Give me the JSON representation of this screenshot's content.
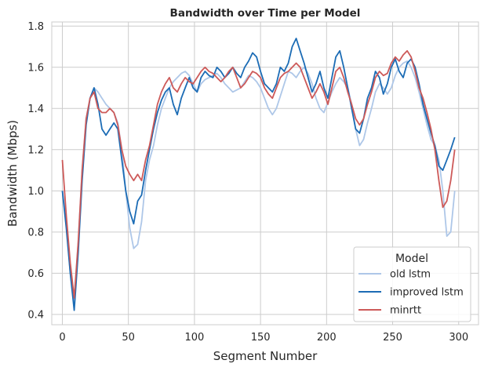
{
  "chart_data": {
    "type": "line",
    "title": "Bandwidth over Time per Model",
    "xlabel": "Segment Number",
    "ylabel": "Bandwidth (Mbps)",
    "xlim": [
      -8,
      315
    ],
    "ylim": [
      0.35,
      1.82
    ],
    "xticks": [
      0,
      50,
      100,
      150,
      200,
      250,
      300
    ],
    "yticks": [
      0.4,
      0.6,
      0.8,
      1.0,
      1.2,
      1.4,
      1.6,
      1.8
    ],
    "xtick_labels": [
      "0",
      "50",
      "100",
      "150",
      "200",
      "250",
      "300"
    ],
    "ytick_labels": [
      "0.4",
      "0.6",
      "0.8",
      "1.0",
      "1.2",
      "1.4",
      "1.6",
      "1.8"
    ],
    "grid": true,
    "legend": {
      "title": "Model",
      "position": "lower-right"
    },
    "series": [
      {
        "name": "old lstm",
        "color": "#aec7e8",
        "x": [
          0,
          3,
          6,
          9,
          12,
          15,
          18,
          21,
          24,
          27,
          30,
          33,
          36,
          39,
          42,
          45,
          48,
          51,
          54,
          57,
          60,
          63,
          66,
          69,
          72,
          75,
          78,
          81,
          84,
          87,
          90,
          93,
          96,
          99,
          102,
          105,
          108,
          111,
          114,
          117,
          120,
          123,
          126,
          129,
          132,
          135,
          138,
          141,
          144,
          147,
          150,
          153,
          156,
          159,
          162,
          165,
          168,
          171,
          174,
          177,
          180,
          183,
          186,
          189,
          192,
          195,
          198,
          201,
          204,
          207,
          210,
          213,
          216,
          219,
          222,
          225,
          228,
          231,
          234,
          237,
          240,
          243,
          246,
          249,
          252,
          255,
          258,
          261,
          264,
          267,
          270,
          273,
          276,
          279,
          282,
          285,
          288,
          291,
          294,
          297
        ],
        "y": [
          1.0,
          0.85,
          0.6,
          0.45,
          0.75,
          1.1,
          1.35,
          1.45,
          1.5,
          1.48,
          1.45,
          1.42,
          1.4,
          1.38,
          1.33,
          1.2,
          1.0,
          0.82,
          0.72,
          0.74,
          0.85,
          1.05,
          1.15,
          1.22,
          1.32,
          1.4,
          1.45,
          1.5,
          1.53,
          1.55,
          1.57,
          1.58,
          1.56,
          1.52,
          1.48,
          1.52,
          1.54,
          1.55,
          1.56,
          1.57,
          1.55,
          1.52,
          1.5,
          1.48,
          1.49,
          1.5,
          1.53,
          1.56,
          1.55,
          1.53,
          1.5,
          1.45,
          1.4,
          1.37,
          1.4,
          1.46,
          1.52,
          1.58,
          1.57,
          1.55,
          1.58,
          1.6,
          1.57,
          1.52,
          1.45,
          1.4,
          1.38,
          1.43,
          1.48,
          1.52,
          1.55,
          1.53,
          1.5,
          1.42,
          1.3,
          1.22,
          1.25,
          1.33,
          1.4,
          1.48,
          1.52,
          1.5,
          1.47,
          1.5,
          1.56,
          1.6,
          1.62,
          1.63,
          1.6,
          1.55,
          1.48,
          1.4,
          1.32,
          1.25,
          1.22,
          1.15,
          1.0,
          0.78,
          0.8,
          1.0
        ]
      },
      {
        "name": "improved lstm",
        "color": "#1c6cb5",
        "x": [
          0,
          3,
          6,
          9,
          12,
          15,
          18,
          21,
          24,
          27,
          30,
          33,
          36,
          39,
          42,
          45,
          48,
          51,
          54,
          57,
          60,
          63,
          66,
          69,
          72,
          75,
          78,
          81,
          84,
          87,
          90,
          93,
          96,
          99,
          102,
          105,
          108,
          111,
          114,
          117,
          120,
          123,
          126,
          129,
          132,
          135,
          138,
          141,
          144,
          147,
          150,
          153,
          156,
          159,
          162,
          165,
          168,
          171,
          174,
          177,
          180,
          183,
          186,
          189,
          192,
          195,
          198,
          201,
          204,
          207,
          210,
          213,
          216,
          219,
          222,
          225,
          228,
          231,
          234,
          237,
          240,
          243,
          246,
          249,
          252,
          255,
          258,
          261,
          264,
          267,
          270,
          273,
          276,
          279,
          282,
          285,
          288,
          291,
          294,
          297
        ],
        "y": [
          1.0,
          0.82,
          0.6,
          0.42,
          0.7,
          1.05,
          1.32,
          1.45,
          1.5,
          1.42,
          1.3,
          1.27,
          1.3,
          1.33,
          1.3,
          1.15,
          1.0,
          0.9,
          0.84,
          0.95,
          0.98,
          1.1,
          1.2,
          1.3,
          1.38,
          1.44,
          1.48,
          1.5,
          1.42,
          1.37,
          1.45,
          1.5,
          1.55,
          1.5,
          1.48,
          1.55,
          1.58,
          1.56,
          1.55,
          1.6,
          1.58,
          1.55,
          1.57,
          1.6,
          1.57,
          1.55,
          1.6,
          1.63,
          1.67,
          1.65,
          1.58,
          1.52,
          1.5,
          1.48,
          1.52,
          1.6,
          1.58,
          1.62,
          1.7,
          1.74,
          1.68,
          1.62,
          1.55,
          1.48,
          1.52,
          1.58,
          1.5,
          1.45,
          1.55,
          1.65,
          1.68,
          1.6,
          1.5,
          1.4,
          1.3,
          1.28,
          1.35,
          1.45,
          1.5,
          1.58,
          1.55,
          1.47,
          1.52,
          1.6,
          1.64,
          1.58,
          1.55,
          1.62,
          1.64,
          1.6,
          1.52,
          1.42,
          1.35,
          1.28,
          1.22,
          1.12,
          1.1,
          1.15,
          1.2,
          1.26
        ]
      },
      {
        "name": "minrtt",
        "color": "#cd5a59",
        "x": [
          0,
          3,
          6,
          9,
          12,
          15,
          18,
          21,
          24,
          27,
          30,
          33,
          36,
          39,
          42,
          45,
          48,
          51,
          54,
          57,
          60,
          63,
          66,
          69,
          72,
          75,
          78,
          81,
          84,
          87,
          90,
          93,
          96,
          99,
          102,
          105,
          108,
          111,
          114,
          117,
          120,
          123,
          126,
          129,
          132,
          135,
          138,
          141,
          144,
          147,
          150,
          153,
          156,
          159,
          162,
          165,
          168,
          171,
          174,
          177,
          180,
          183,
          186,
          189,
          192,
          195,
          198,
          201,
          204,
          207,
          210,
          213,
          216,
          219,
          222,
          225,
          228,
          231,
          234,
          237,
          240,
          243,
          246,
          249,
          252,
          255,
          258,
          261,
          264,
          267,
          270,
          273,
          276,
          279,
          282,
          285,
          288,
          291,
          294,
          297
        ],
        "y": [
          1.15,
          0.88,
          0.65,
          0.48,
          0.75,
          1.1,
          1.35,
          1.45,
          1.48,
          1.4,
          1.38,
          1.38,
          1.4,
          1.38,
          1.32,
          1.2,
          1.12,
          1.08,
          1.05,
          1.08,
          1.05,
          1.15,
          1.22,
          1.32,
          1.42,
          1.48,
          1.52,
          1.55,
          1.5,
          1.48,
          1.52,
          1.55,
          1.53,
          1.52,
          1.55,
          1.58,
          1.6,
          1.58,
          1.57,
          1.55,
          1.53,
          1.55,
          1.58,
          1.6,
          1.55,
          1.5,
          1.52,
          1.55,
          1.58,
          1.57,
          1.55,
          1.5,
          1.47,
          1.45,
          1.5,
          1.55,
          1.57,
          1.58,
          1.6,
          1.62,
          1.6,
          1.55,
          1.5,
          1.45,
          1.48,
          1.52,
          1.48,
          1.42,
          1.5,
          1.58,
          1.6,
          1.55,
          1.48,
          1.42,
          1.35,
          1.32,
          1.35,
          1.42,
          1.48,
          1.55,
          1.58,
          1.56,
          1.57,
          1.62,
          1.65,
          1.63,
          1.66,
          1.68,
          1.65,
          1.58,
          1.5,
          1.45,
          1.38,
          1.3,
          1.2,
          1.05,
          0.92,
          0.95,
          1.05,
          1.2
        ]
      }
    ]
  }
}
